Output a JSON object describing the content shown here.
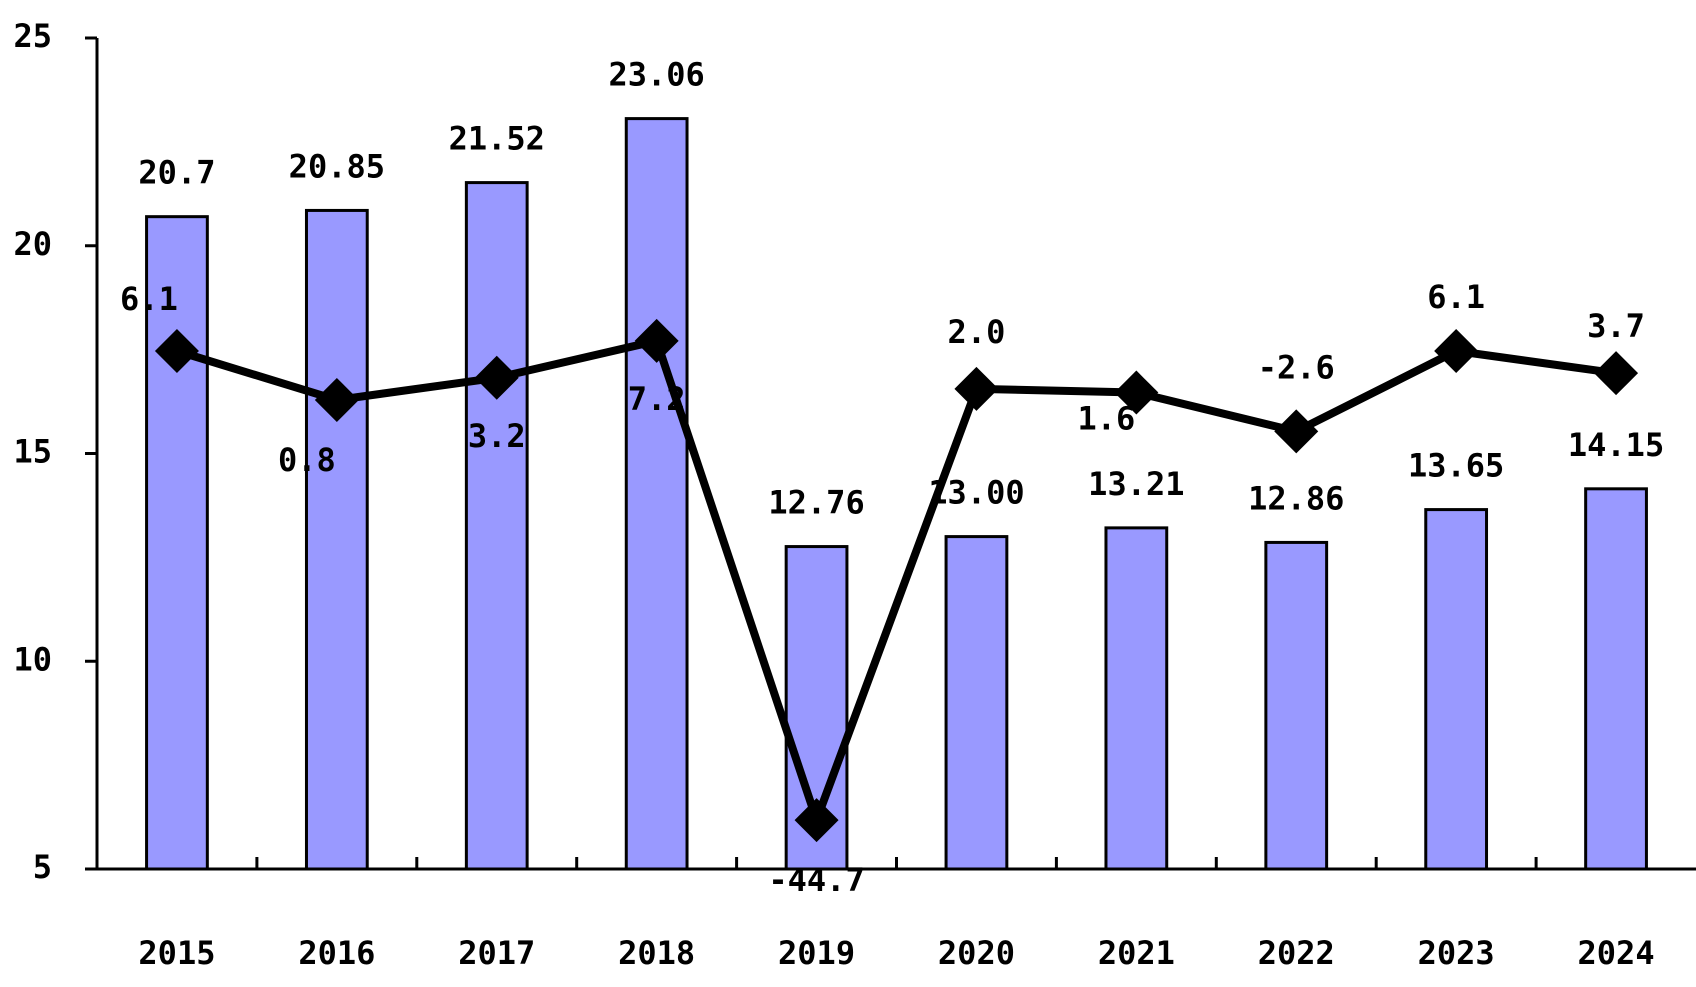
{
  "chart_data": {
    "type": "bar_line",
    "categories": [
      "2015",
      "2016",
      "2017",
      "2018",
      "2019",
      "2020",
      "2021",
      "2022",
      "2023",
      "2024"
    ],
    "series": [
      {
        "type": "bar",
        "color": "#9999ff",
        "values": [
          20.7,
          20.85,
          21.52,
          23.06,
          12.76,
          13.0,
          13.21,
          12.86,
          13.65,
          14.15
        ],
        "value_labels": [
          "20.7",
          "20.85",
          "21.52",
          "23.06",
          "12.76",
          "13.00",
          "13.21",
          "12.86",
          "13.65",
          "14.15"
        ]
      },
      {
        "type": "line",
        "color": "#000000",
        "axis": "y2",
        "values": [
          6.1,
          0.8,
          3.2,
          7.2,
          -44.7,
          2.0,
          1.6,
          -2.6,
          6.1,
          3.7
        ],
        "value_labels": [
          "6.1",
          "0.8",
          "3.2",
          "7.2",
          "-44.7",
          "2.0",
          "1.6",
          "-2.6",
          "6.1",
          "3.7"
        ]
      }
    ],
    "ylim": [
      5,
      25
    ],
    "yticks": [
      5,
      10,
      15,
      20,
      25
    ],
    "y2lim": [
      -50,
      40
    ]
  }
}
